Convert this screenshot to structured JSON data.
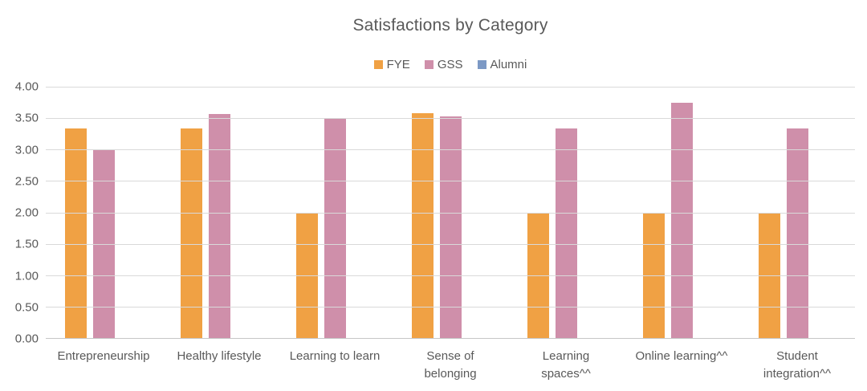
{
  "chart_data": {
    "type": "bar",
    "title": "Satisfactions by Category",
    "categories": [
      "Entrepreneurship",
      "Healthy lifestyle",
      "Learning to learn",
      "Sense of\nbelonging",
      "Learning\nspaces^^",
      "Online learning^^",
      "Student\nintegration^^"
    ],
    "series": [
      {
        "name": "FYE",
        "color": "#F0A144",
        "values": [
          3.33,
          3.33,
          2.0,
          3.58,
          2.0,
          2.0,
          2.0
        ]
      },
      {
        "name": "GSS",
        "color": "#CF8FAA",
        "values": [
          3.0,
          3.56,
          3.5,
          3.53,
          3.33,
          3.75,
          3.33
        ]
      },
      {
        "name": "Alumni",
        "color": "#7C99C5",
        "values": [
          0,
          0,
          0,
          0,
          0,
          0,
          0
        ]
      }
    ],
    "ylim": [
      0,
      4
    ],
    "ytick_step": 0.5,
    "ytick_labels": [
      "0.00",
      "0.50",
      "1.00",
      "1.50",
      "2.00",
      "2.50",
      "3.00",
      "3.50",
      "4.00"
    ],
    "grid": true,
    "legend_position": "top-center",
    "colors": {
      "text": "#595959",
      "gridline": "#D9D9D9",
      "axis_line": "#C6C6C6",
      "background": "#FFFFFF"
    }
  }
}
